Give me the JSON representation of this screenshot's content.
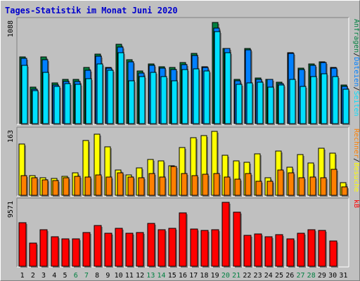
{
  "title": "Tages-Statistik im Monat Juni 2020",
  "colors": {
    "hits": "#008040",
    "files": "#0080ff",
    "pages": "#00e0ff",
    "visits": "#ffff00",
    "sites": "#ff8000",
    "kbytes": "#ff0000",
    "weekend_day": "#008040",
    "weekday": "#000000",
    "panel_bg": "#c0c0c0",
    "title": "#0000cc"
  },
  "chart_data": [
    {
      "type": "bar",
      "panel": "top",
      "y_max_label": "1088",
      "ylim": [
        0,
        1088
      ],
      "right_labels": [
        {
          "text": "Anfragen",
          "color": "#008040"
        },
        {
          "text": "/",
          "color": "#000000"
        },
        {
          "text": "Dateien",
          "color": "#0080ff"
        },
        {
          "text": "/",
          "color": "#000000"
        },
        {
          "text": "Seiten",
          "color": "#00e0ff"
        }
      ],
      "series": [
        {
          "name": "Anfragen",
          "values": [
            715,
            390,
            715,
            435,
            470,
            470,
            600,
            740,
            600,
            850,
            680,
            560,
            640,
            610,
            600,
            650,
            750,
            610,
            1080,
            805,
            470,
            800,
            490,
            475,
            440,
            760,
            590,
            640,
            660,
            600,
            410
          ]
        },
        {
          "name": "Dateien",
          "values": [
            700,
            370,
            680,
            410,
            450,
            450,
            570,
            720,
            590,
            820,
            660,
            540,
            620,
            590,
            580,
            630,
            730,
            600,
            1020,
            805,
            460,
            790,
            470,
            470,
            430,
            750,
            580,
            620,
            650,
            590,
            400
          ]
        },
        {
          "name": "Seiten",
          "values": [
            620,
            350,
            550,
            400,
            430,
            420,
            480,
            640,
            570,
            760,
            460,
            500,
            550,
            500,
            460,
            580,
            585,
            560,
            985,
            760,
            420,
            435,
            440,
            390,
            410,
            470,
            400,
            500,
            530,
            500,
            370
          ]
        }
      ]
    },
    {
      "type": "bar",
      "panel": "middle",
      "y_max_label": "163",
      "ylim": [
        0,
        163
      ],
      "right_labels": [
        {
          "text": "Rechner",
          "color": "#ff8000"
        },
        {
          "text": "/",
          "color": "#000000"
        },
        {
          "text": "Besuche",
          "color": "#ffff00"
        }
      ],
      "series": [
        {
          "name": "Besuche",
          "values": [
            130,
            50,
            45,
            43,
            48,
            57,
            140,
            155,
            123,
            64,
            52,
            70,
            92,
            88,
            75,
            122,
            147,
            153,
            163,
            102,
            88,
            85,
            105,
            45,
            112,
            72,
            103,
            83,
            120,
            108,
            32
          ]
        },
        {
          "name": "Rechner",
          "values": [
            50,
            45,
            40,
            37,
            44,
            48,
            46,
            52,
            47,
            57,
            47,
            45,
            55,
            47,
            74,
            55,
            50,
            54,
            55,
            47,
            42,
            55,
            35,
            35,
            65,
            58,
            45,
            46,
            45,
            66,
            22
          ]
        }
      ]
    },
    {
      "type": "bar",
      "panel": "bottom",
      "y_max_label": "9571",
      "ylim": [
        0,
        9571
      ],
      "right_labels": [
        {
          "text": "kB",
          "color": "#ff0000"
        }
      ],
      "series": [
        {
          "name": "kB",
          "values": [
            6500,
            3500,
            5500,
            4400,
            4100,
            4100,
            5100,
            6100,
            4900,
            5700,
            4900,
            5000,
            6400,
            5500,
            5700,
            8000,
            5600,
            5400,
            5500,
            9571,
            8100,
            4600,
            4800,
            4400,
            4700,
            4100,
            4900,
            5500,
            5400,
            3800,
            0
          ]
        }
      ]
    }
  ],
  "x_axis": {
    "days": [
      "1",
      "2",
      "3",
      "4",
      "5",
      "6",
      "7",
      "8",
      "9",
      "10",
      "11",
      "12",
      "13",
      "14",
      "15",
      "16",
      "17",
      "18",
      "19",
      "20",
      "21",
      "22",
      "23",
      "24",
      "25",
      "26",
      "27",
      "28",
      "29",
      "30",
      "31"
    ],
    "weekend": [
      6,
      7,
      13,
      14,
      20,
      21,
      27,
      28
    ]
  }
}
